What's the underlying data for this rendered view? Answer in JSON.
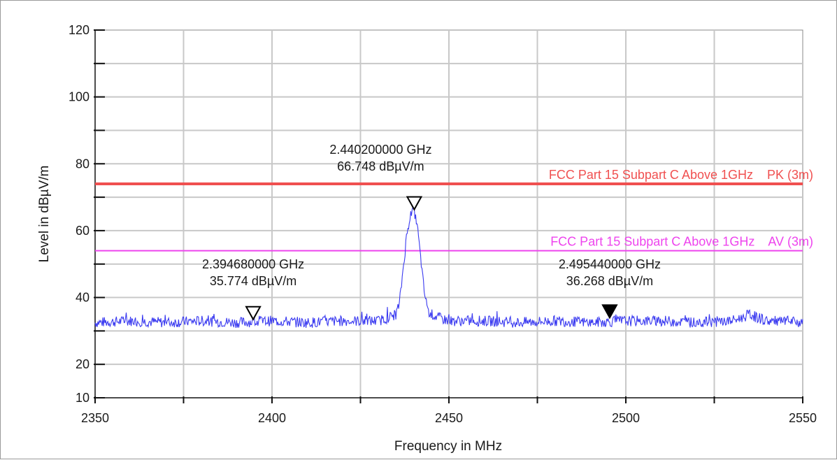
{
  "chart_data": {
    "type": "line",
    "xlabel": "Frequency in MHz",
    "ylabel": "Level in dBµV/m",
    "xlim": [
      2350,
      2550
    ],
    "ylim": [
      10,
      120
    ],
    "x_ticks": [
      2350,
      2400,
      2450,
      2500,
      2550
    ],
    "y_ticks": [
      10,
      20,
      40,
      60,
      80,
      100,
      120
    ],
    "grid": true,
    "limit_lines": [
      {
        "label": "FCC Part 15 Subpart C Above 1GHz    PK (3m)",
        "value": 74,
        "color": "#f05050"
      },
      {
        "label": "FCC Part 15 Subpart C Above 1GHz    AV (3m)",
        "value": 54,
        "color": "#ee44ee"
      }
    ],
    "markers": [
      {
        "freq_label": "2.394680000 GHz",
        "level_label": "35.774 dBµV/m",
        "x": 2394.68,
        "y": 35.774,
        "filled": false
      },
      {
        "freq_label": "2.440200000 GHz",
        "level_label": "66.748 dBµV/m",
        "x": 2440.2,
        "y": 66.748,
        "filled": false
      },
      {
        "freq_label": "2.495440000 GHz",
        "level_label": "36.268 dBµV/m",
        "x": 2495.44,
        "y": 36.268,
        "filled": true
      }
    ],
    "series": [
      {
        "color": "#3a3af0",
        "x": [
          2350,
          2360,
          2370,
          2380,
          2390,
          2400,
          2410,
          2420,
          2430,
          2433,
          2435,
          2436,
          2437,
          2438,
          2439,
          2440,
          2441,
          2442,
          2443,
          2444,
          2445,
          2447,
          2450,
          2460,
          2470,
          2480,
          2490,
          2500,
          2510,
          2520,
          2530,
          2533,
          2535,
          2537,
          2540,
          2550
        ],
        "y": [
          32.5,
          33,
          32.5,
          33,
          32.5,
          33,
          32.5,
          33,
          33,
          34,
          35,
          38,
          48,
          58,
          64,
          66.5,
          62,
          52,
          42,
          36,
          35,
          34,
          33,
          33,
          32.5,
          33,
          32.5,
          33,
          33,
          32.5,
          33,
          34,
          35,
          34,
          33,
          32.5
        ]
      }
    ]
  }
}
